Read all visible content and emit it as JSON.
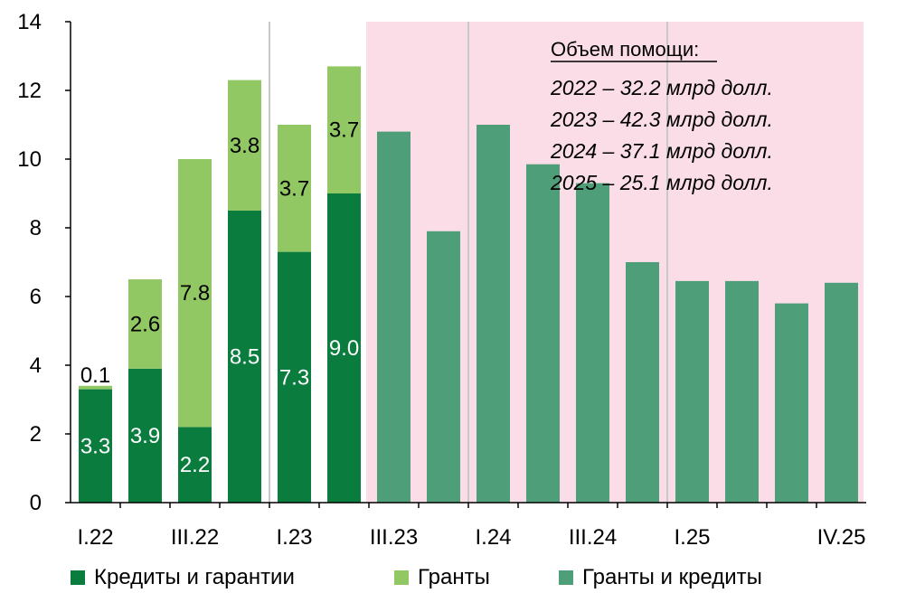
{
  "colors": {
    "credits": "#0a7d3e",
    "grants": "#92c864",
    "combined": "#4e9e7a",
    "forecast_bg": "#fbdde8",
    "grid": "#c8c8c8"
  },
  "chart_data": {
    "type": "bar",
    "stacked": true,
    "categories": [
      "I.22",
      "II.22",
      "III.22",
      "IV.22",
      "I.23",
      "II.23",
      "III.23",
      "IV.23",
      "I.24",
      "II.24",
      "III.24",
      "IV.24",
      "I.25",
      "II.25",
      "III.25",
      "IV.25"
    ],
    "x_tick_labels": [
      "I.22",
      "",
      "III.22",
      "",
      "I.23",
      "",
      "III.23",
      "",
      "I.24",
      "",
      "III.24",
      "",
      "I.25",
      "",
      "",
      "IV.25"
    ],
    "series": [
      {
        "name": "Кредиты и гарантии",
        "color_key": "credits",
        "values": [
          3.3,
          3.9,
          2.2,
          8.5,
          7.3,
          9.0,
          null,
          null,
          null,
          null,
          null,
          null,
          null,
          null,
          null,
          null
        ],
        "labels": [
          "3.3",
          "3.9",
          "2.2",
          "8.5",
          "7.3",
          "9.0"
        ]
      },
      {
        "name": "Гранты",
        "color_key": "grants",
        "values": [
          0.1,
          2.6,
          7.8,
          3.8,
          3.7,
          3.7,
          null,
          null,
          null,
          null,
          null,
          null,
          null,
          null,
          null,
          null
        ],
        "labels": [
          "0.1",
          "2.6",
          "7.8",
          "3.8",
          "3.7",
          "3.7"
        ]
      },
      {
        "name": "Гранты и кредиты",
        "color_key": "combined",
        "values": [
          null,
          null,
          null,
          null,
          null,
          null,
          10.8,
          7.9,
          11.0,
          9.85,
          9.3,
          7.0,
          6.45,
          6.45,
          5.8,
          6.4
        ]
      }
    ],
    "y_ticks": [
      "0",
      "2",
      "4",
      "6",
      "8",
      "10",
      "12",
      "14"
    ],
    "ylim": [
      0,
      14
    ],
    "shaded_region": {
      "from_category": "III.23",
      "to_category": "IV.25"
    },
    "vertical_gridlines_after": [
      "IV.22",
      "IV.23",
      "IV.24"
    ],
    "annotation": {
      "title": "Объем помощи:",
      "lines": [
        "2022 – 32.2 млрд долл.",
        "2023 – 42.3 млрд долл.",
        "2024 – 37.1 млрд долл.",
        "2025 – 25.1 млрд долл."
      ]
    },
    "legend_placement": "bottom"
  }
}
